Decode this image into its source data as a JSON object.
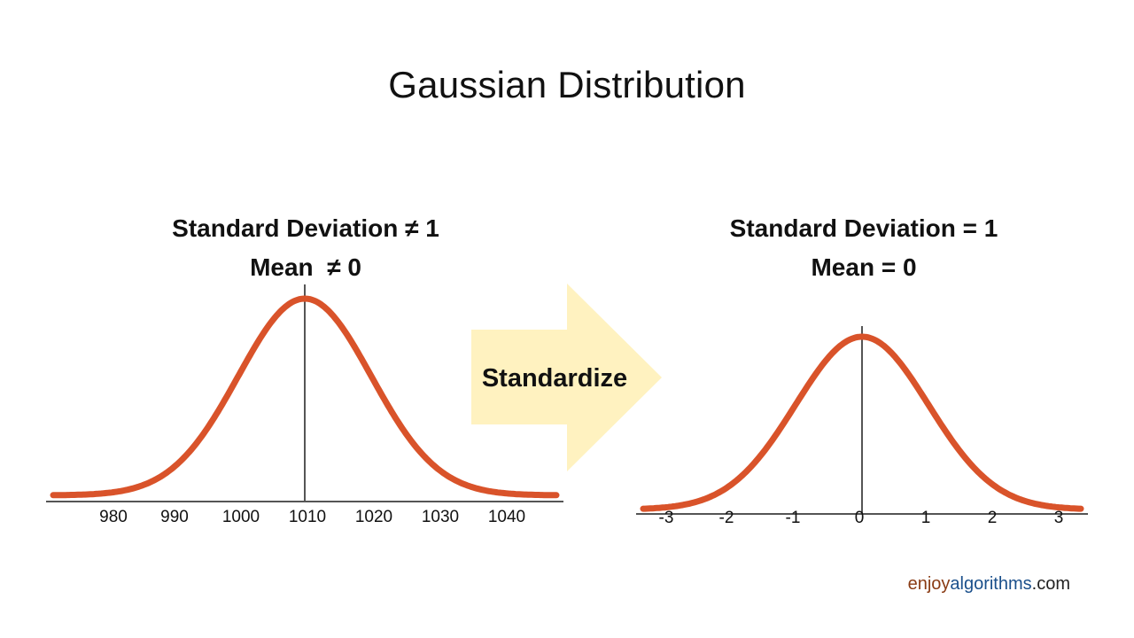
{
  "title": "Gaussian Distribution",
  "left_panel": {
    "line1": "Standard Deviation ≠ 1",
    "line2": "Mean  ≠ 0"
  },
  "right_panel": {
    "line1": "Standard Deviation = 1",
    "line2": "Mean = 0"
  },
  "arrow": {
    "label": "Standardize",
    "color": "#FFF2C0"
  },
  "brand": {
    "part1": "enjoy",
    "part2": "algorithms",
    "part3": ".com"
  },
  "colors": {
    "curve": "#D9532A",
    "axis": "#555555",
    "arrow_fill": "#FFF2C0",
    "brand_enjoy": "#8a3b14",
    "brand_algorithms": "#1a4f8b"
  },
  "chart_data": [
    {
      "type": "line",
      "title": "Standard Deviation ≠ 1, Mean ≠ 0",
      "description": "Normal distribution curve",
      "mean": 1010,
      "std": 10,
      "x_ticks": [
        "980",
        "990",
        "1000",
        "1010",
        "1020",
        "1030",
        "1040"
      ],
      "xlim": [
        970,
        1050
      ],
      "xlabel": "",
      "ylabel": "",
      "grid": false
    },
    {
      "type": "line",
      "title": "Standard Deviation = 1, Mean = 0",
      "description": "Standard normal distribution curve",
      "mean": 0,
      "std": 1,
      "x_ticks": [
        "-3",
        "-2",
        "-1",
        "0",
        "1",
        "2",
        "3"
      ],
      "xlim": [
        -3.5,
        3.4
      ],
      "xlabel": "",
      "ylabel": "",
      "grid": false
    }
  ]
}
